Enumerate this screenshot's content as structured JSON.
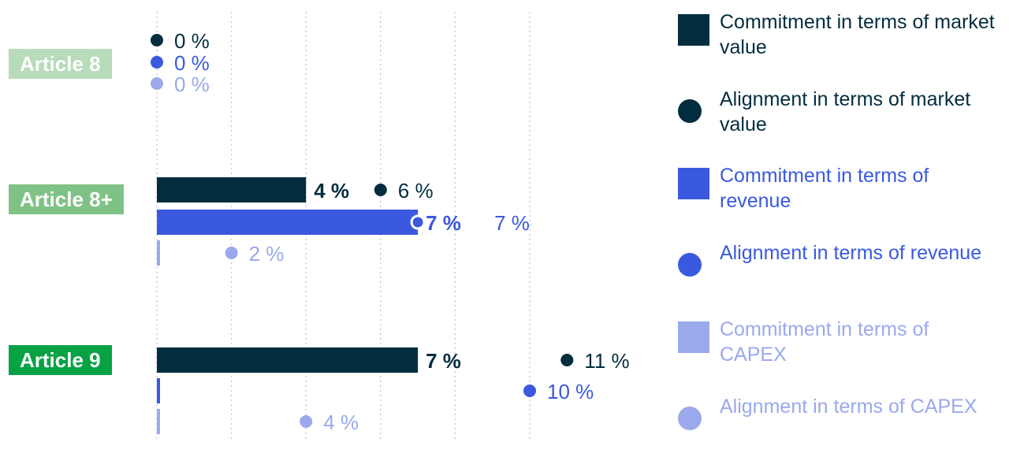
{
  "colors": {
    "market_value": "#022d3f",
    "revenue": "#3a59de",
    "capex": "#9aa9ec",
    "gridline": "#c8c9ea",
    "article8": "#b8dbb9",
    "article8plus": "#7fc285",
    "article9": "#06a244"
  },
  "legend": [
    {
      "label": "Commitment in terms of market value",
      "shape": "square",
      "color": "#022d3f"
    },
    {
      "label": "Alignment in terms of market value",
      "shape": "circle",
      "color": "#022d3f"
    },
    {
      "label": "Commitment in terms of revenue",
      "shape": "square",
      "color": "#3a59de"
    },
    {
      "label": "Alignment in terms of revenue",
      "shape": "circle",
      "color": "#3a59de"
    },
    {
      "label": "Commitment in terms of CAPEX",
      "shape": "square",
      "color": "#9aa9ec"
    },
    {
      "label": "Alignment in terms of CAPEX",
      "shape": "circle",
      "color": "#9aa9ec"
    }
  ],
  "chart_data": {
    "type": "bar",
    "orientation": "horizontal",
    "categories": [
      "Article 8",
      "Article 8+",
      "Article 9"
    ],
    "measures": [
      "market value",
      "revenue",
      "CAPEX"
    ],
    "series": [
      {
        "name": "Commitment in terms of market value",
        "kind": "bar",
        "values": [
          null,
          4,
          7
        ],
        "labels": [
          "",
          "4 %",
          "7 %"
        ]
      },
      {
        "name": "Alignment in terms of market value",
        "kind": "dot",
        "values": [
          0,
          6,
          11
        ],
        "labels": [
          "0 %",
          "6 %",
          "11 %"
        ]
      },
      {
        "name": "Commitment in terms of revenue",
        "kind": "bar",
        "values": [
          null,
          7,
          0.1
        ],
        "labels": [
          "",
          "7 %",
          ""
        ]
      },
      {
        "name": "Alignment in terms of revenue",
        "kind": "dot",
        "values": [
          0,
          7,
          10
        ],
        "labels": [
          "0 %",
          "7 %",
          "10 %"
        ]
      },
      {
        "name": "Commitment in terms of CAPEX",
        "kind": "bar",
        "values": [
          null,
          0.1,
          0.1
        ],
        "labels": [
          "",
          "",
          ""
        ]
      },
      {
        "name": "Alignment in terms of CAPEX",
        "kind": "dot",
        "values": [
          0,
          2,
          4
        ],
        "labels": [
          "0 %",
          "2 %",
          "4 %"
        ]
      }
    ],
    "xlim": [
      0,
      11
    ],
    "grid_values": [
      0,
      2,
      4,
      6,
      8,
      10
    ],
    "grid": true,
    "legend_position": "right"
  }
}
